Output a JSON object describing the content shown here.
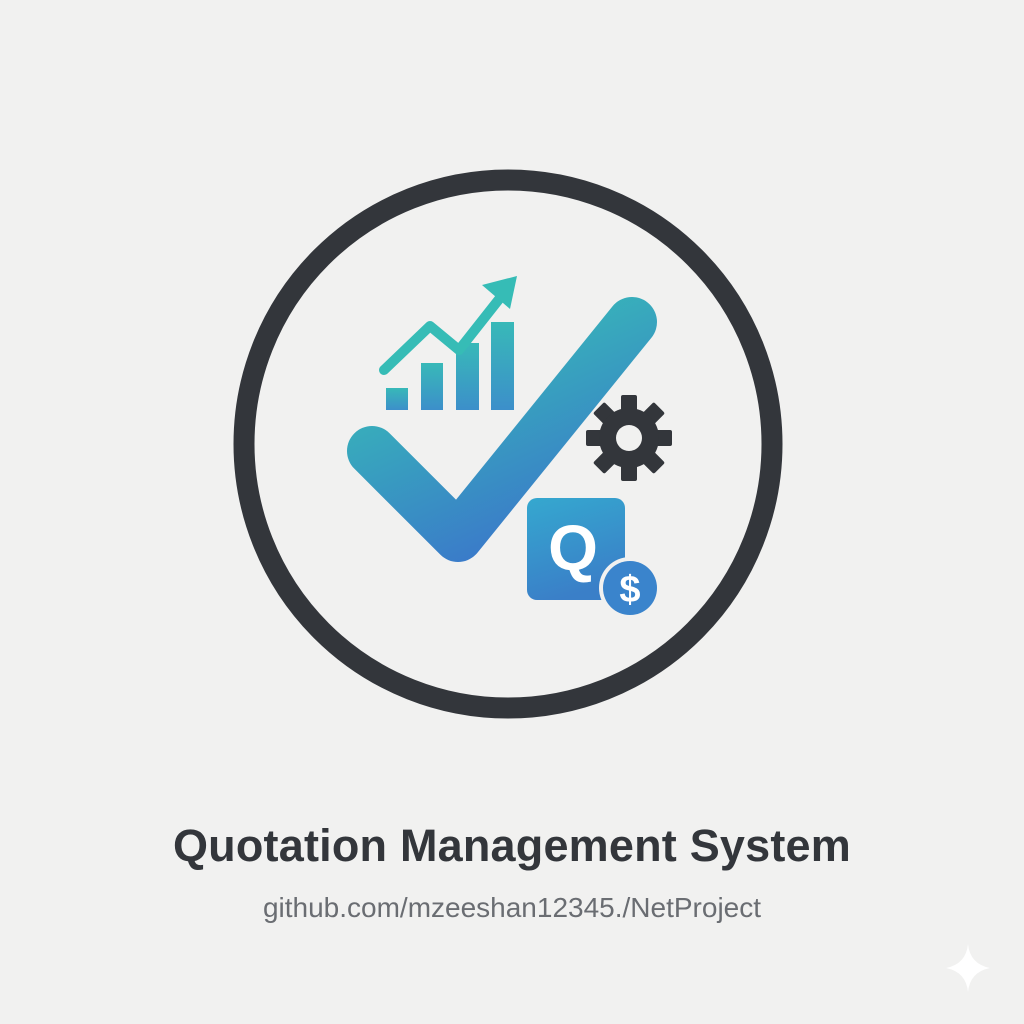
{
  "title": "Quotation Management System",
  "subtitle": "github.com/mzeeshan12345./NetProject",
  "badge": {
    "letter": "Q",
    "currency": "$"
  },
  "icons": {
    "emblem": "circle-outline",
    "chart": "bar-chart-trend-icon",
    "check": "checkmark-icon",
    "gear": "gear-icon",
    "badge": "quote-badge-icon",
    "currency": "dollar-coin-icon",
    "sparkle": "sparkle-icon"
  },
  "colors": {
    "background": "#f1f1f0",
    "ring": "#33363b",
    "gradient_start": "#36c6b4",
    "gradient_end": "#3a7cc9",
    "gear": "#33363b",
    "title": "#33363b",
    "subtitle": "#6a6d72"
  }
}
